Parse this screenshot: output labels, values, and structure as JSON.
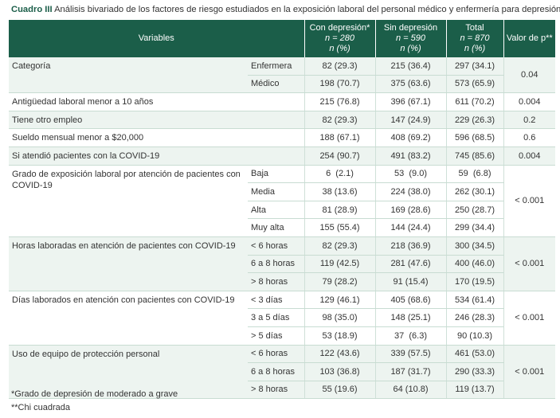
{
  "caption": {
    "label": "Cuadro III",
    "text": " Análisis bivariado de los factores de riesgo estudiados en la exposición laboral del personal médico y enfermería para depresión"
  },
  "header": {
    "variables": "Variables",
    "con": {
      "title": "Con depresión*",
      "n": "n = 280",
      "pct": "n (%)"
    },
    "sin": {
      "title": "Sin depresión",
      "n": "n = 590",
      "pct": "n (%)"
    },
    "total": {
      "title": "Total",
      "n": "n = 870",
      "pct": "n (%)"
    },
    "p": "Valor de p**"
  },
  "rows": {
    "categoria": {
      "label": "Categoría",
      "p": "0.04",
      "sub": [
        {
          "name": "Enfermera",
          "con": "82 (29.3)",
          "sin": "215 (36.4)",
          "total": "297 (34.1)"
        },
        {
          "name": "Médico",
          "con": "198 (70.7)",
          "sin": "375 (63.6)",
          "total": "573 (65.9)"
        }
      ]
    },
    "antiguedad": {
      "label": "Antigüedad laboral menor a 10 años",
      "con": "215 (76.8)",
      "sin": "396 (67.1)",
      "total": "611 (70.2)",
      "p": "0.004"
    },
    "otro_empleo": {
      "label": "Tiene otro empleo",
      "con": "82 (29.3)",
      "sin": "147 (24.9)",
      "total": "229 (26.3)",
      "p": "0.2"
    },
    "sueldo": {
      "label": "Sueldo mensual menor a $20,000",
      "con": "188 (67.1)",
      "sin": "408 (69.2)",
      "total": "596 (68.5)",
      "p": "0.6"
    },
    "covid": {
      "label": "Si atendió pacientes con la COVID-19",
      "con": "254 (90.7)",
      "sin": "491 (83.2)",
      "total": "745 (85.6)",
      "p": "0.004"
    },
    "grado": {
      "label": "Grado de exposición laboral por atención de pacientes con COVID-19",
      "p": "< 0.001",
      "sub": [
        {
          "name": "Baja",
          "con": "6  (2.1)",
          "sin": "53  (9.0)",
          "total": "59  (6.8)"
        },
        {
          "name": "Media",
          "con": "38 (13.6)",
          "sin": "224 (38.0)",
          "total": "262 (30.1)"
        },
        {
          "name": "Alta",
          "con": "81 (28.9)",
          "sin": "169 (28.6)",
          "total": "250 (28.7)"
        },
        {
          "name": "Muy alta",
          "con": "155 (55.4)",
          "sin": "144 (24.4)",
          "total": "299 (34.4)"
        }
      ]
    },
    "horas": {
      "label": "Horas laboradas en atención de pacientes con COVID-19",
      "p": "< 0.001",
      "sub": [
        {
          "name": "< 6 horas",
          "con": "82 (29.3)",
          "sin": "218 (36.9)",
          "total": "300 (34.5)"
        },
        {
          "name": "6 a 8 horas",
          "con": "119 (42.5)",
          "sin": "281 (47.6)",
          "total": "400 (46.0)"
        },
        {
          "name": "> 8 horas",
          "con": "79 (28.2)",
          "sin": "91 (15.4)",
          "total": "170 (19.5)"
        }
      ]
    },
    "dias": {
      "label": "Días laborados en atención con pacientes con COVID-19",
      "p": "< 0.001",
      "sub": [
        {
          "name": "< 3 días",
          "con": "129 (46.1)",
          "sin": "405 (68.6)",
          "total": "534 (61.4)"
        },
        {
          "name": "3 a 5 días",
          "con": "98 (35.0)",
          "sin": "148 (25.1)",
          "total": "246 (28.3)"
        },
        {
          "name": "> 5 días",
          "con": "53 (18.9)",
          "sin": "37  (6.3)",
          "total": "90 (10.3)"
        }
      ]
    },
    "epp": {
      "label": "Uso de equipo de protección personal",
      "p": "< 0.001",
      "sub": [
        {
          "name": "< 6 horas",
          "con": "122 (43.6)",
          "sin": "339 (57.5)",
          "total": "461 (53.0)"
        },
        {
          "name": "6 a 8 horas",
          "con": "103 (36.8)",
          "sin": "187 (31.7)",
          "total": "290 (33.3)"
        },
        {
          "name": "> 8 horas",
          "con": "55 (19.6)",
          "sin": "64 (10.8)",
          "total": "119 (13.7)"
        }
      ]
    }
  },
  "footnotes": {
    "f1": "*Grado de depresión de moderado a grave",
    "f2": "**Chi cuadrada"
  }
}
